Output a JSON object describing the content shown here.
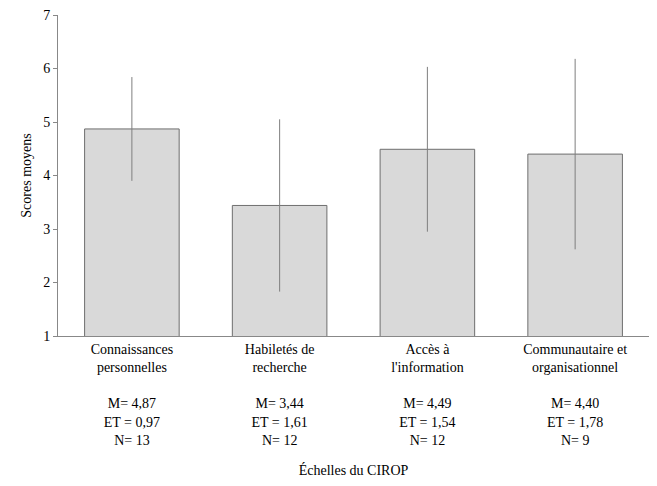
{
  "chart_data": {
    "type": "bar",
    "categories": [
      "Connaissances personnelles",
      "Habiletés de recherche",
      "Accès à l'information",
      "Communautaire et organisationnel"
    ],
    "values": [
      4.87,
      3.44,
      4.49,
      4.4
    ],
    "error": [
      0.97,
      1.61,
      1.54,
      1.78
    ],
    "stat_labels": [
      [
        "M= 4,87",
        "ET = 0,97",
        "N= 13"
      ],
      [
        "M= 3,44",
        "ET = 1,61",
        "N= 12"
      ],
      [
        "M= 4,49",
        "ET = 1,54",
        "N= 12"
      ],
      [
        "M= 4,40",
        "ET = 1,78",
        "N= 9"
      ]
    ],
    "x_label": "Échelles du CIROP",
    "y_label": "Scores moyens",
    "color": "#d9d9d9",
    "ylim": [
      1,
      7
    ],
    "yticks": [
      1,
      2,
      3,
      4,
      5,
      6,
      7
    ],
    "grid": false
  }
}
